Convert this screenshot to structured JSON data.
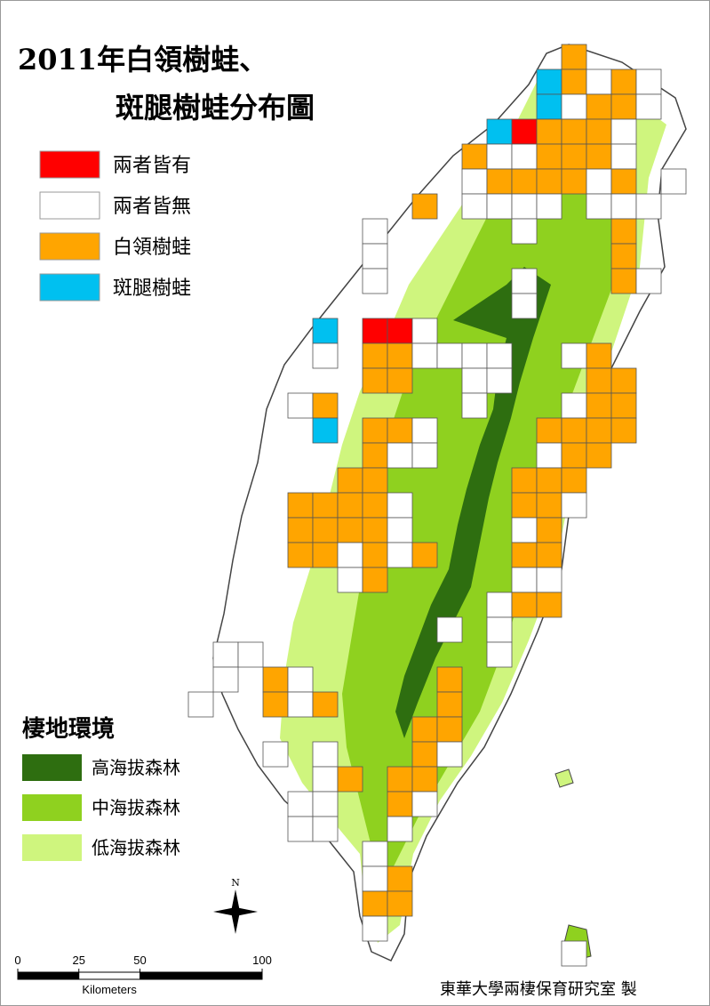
{
  "title": {
    "line1": "2011年白領樹蛙、",
    "line2": "斑腿樹蛙分布圖"
  },
  "legend": {
    "items": [
      {
        "label": "兩者皆有",
        "color": "#ff0000"
      },
      {
        "label": "兩者皆無",
        "color": "#ffffff"
      },
      {
        "label": "白領樹蛙",
        "color": "#ffa500"
      },
      {
        "label": "斑腿樹蛙",
        "color": "#00c0f0"
      }
    ]
  },
  "habitat": {
    "title": "棲地環境",
    "items": [
      {
        "label": "高海拔森林",
        "color": "#2e6e10"
      },
      {
        "label": "中海拔森林",
        "color": "#8fd11f"
      },
      {
        "label": "低海拔森林",
        "color": "#cff57e"
      }
    ]
  },
  "scale": {
    "ticks": [
      0,
      25,
      50,
      100
    ],
    "unit": "Kilometers"
  },
  "north": "N",
  "credit": "東華大學兩棲保育研究室 製"
}
